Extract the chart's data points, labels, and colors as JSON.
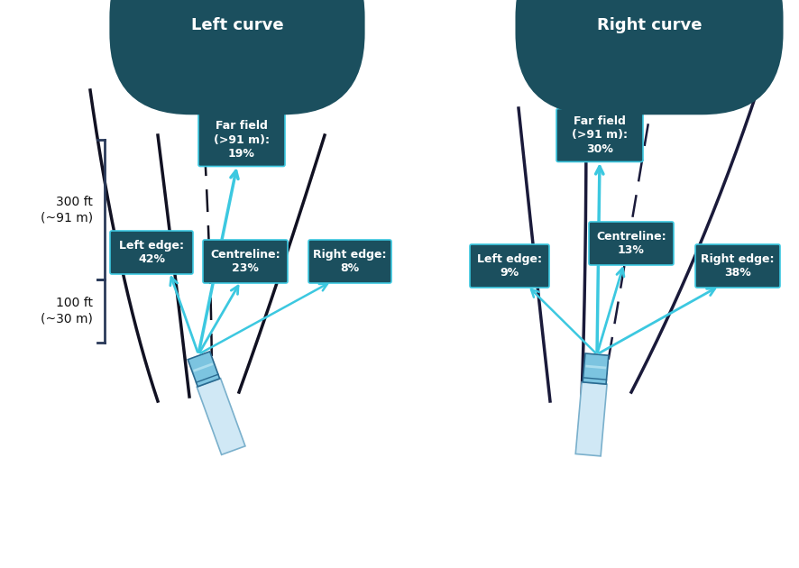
{
  "bg_color": "#ffffff",
  "dark_teal": "#1b4f5e",
  "dark_teal2": "#16404e",
  "cyan_arrow": "#3cc8e0",
  "left_curve_title": "Left curve",
  "right_curve_title": "Right curve",
  "left_labels": {
    "far_field": "Far field\n(>91 m):\n19%",
    "left_edge": "Left edge:\n42%",
    "centreline": "Centreline:\n23%",
    "right_edge": "Right edge:\n8%"
  },
  "right_labels": {
    "far_field": "Far field\n(>91 m):\n30%",
    "left_edge": "Left edge:\n9%",
    "centreline": "Centreline:\n13%",
    "right_edge": "Right edge:\n38%"
  },
  "side_label_top": "300 ft\n(~91 m)",
  "side_label_bottom": "100 ft\n(~30 m)",
  "road_color": "#111122",
  "road_color_dark": "#1a1a3a"
}
